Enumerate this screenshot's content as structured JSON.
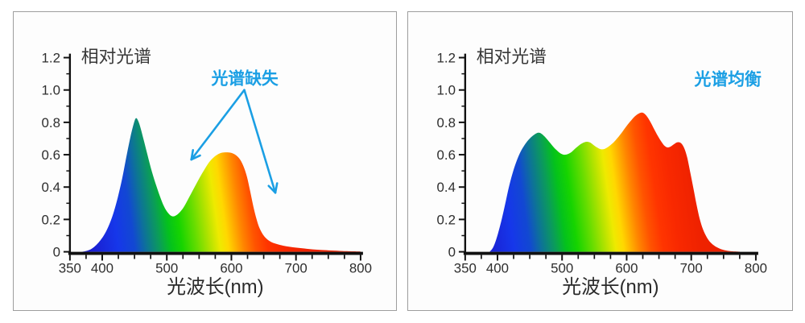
{
  "page": {
    "background": "#ffffff",
    "panel_border": "#9e9e9e",
    "panel_background": "#fdfdfd"
  },
  "text_colors": {
    "title": "#383838",
    "tick": "#2e2e2e",
    "axis": "#111111",
    "annotation_blue": "#1b9fe4"
  },
  "spectrum_gradient": {
    "tilt": 0.14,
    "range_nm": [
      380,
      760
    ],
    "stops": [
      [
        380,
        "#1b1bcd"
      ],
      [
        425,
        "#1637ea"
      ],
      [
        450,
        "#1248d2"
      ],
      [
        468,
        "#0d7397"
      ],
      [
        488,
        "#0b9c5a"
      ],
      [
        505,
        "#04c21c"
      ],
      [
        522,
        "#16d400"
      ],
      [
        545,
        "#66dd00"
      ],
      [
        565,
        "#b5e300"
      ],
      [
        580,
        "#eeea00"
      ],
      [
        592,
        "#ffd800"
      ],
      [
        604,
        "#ffae00"
      ],
      [
        616,
        "#ff8400"
      ],
      [
        633,
        "#ff5400"
      ],
      [
        652,
        "#ff3500"
      ],
      [
        675,
        "#f92900"
      ],
      [
        710,
        "#ef2200"
      ],
      [
        760,
        "#e91f00"
      ]
    ]
  },
  "chart_data": [
    {
      "type": "area",
      "title": "相对光谱",
      "xlabel": "光波长(nm)",
      "ylabel": "",
      "xlim": [
        350,
        800
      ],
      "ylim": [
        0,
        1.2
      ],
      "x_tick_labels": [
        "350",
        "400",
        "500",
        "600",
        "700",
        "800"
      ],
      "x_minor_tick_step": 25,
      "y_tick_labels": [
        "0",
        "0.2",
        "0.4",
        "0.6",
        "0.8",
        "1.0",
        "1.2"
      ],
      "y_minor_tick_step": 0.1,
      "grid": false,
      "legend": "none",
      "annotation": {
        "text": "光谱缺失",
        "color": "#1b9fe4",
        "arrows": [
          {
            "from": [
              620,
              1.0
            ],
            "to": [
              538,
              0.57
            ]
          },
          {
            "from": [
              620,
              1.0
            ],
            "to": [
              668,
              0.365
            ]
          }
        ]
      },
      "series": [
        {
          "points": [
            [
              368,
              0
            ],
            [
              375,
              0.005
            ],
            [
              382,
              0.015
            ],
            [
              389,
              0.035
            ],
            [
              396,
              0.065
            ],
            [
              403,
              0.105
            ],
            [
              410,
              0.16
            ],
            [
              417,
              0.235
            ],
            [
              424,
              0.335
            ],
            [
              431,
              0.455
            ],
            [
              438,
              0.6
            ],
            [
              444,
              0.715
            ],
            [
              449,
              0.795
            ],
            [
              452,
              0.825
            ],
            [
              455,
              0.815
            ],
            [
              459,
              0.77
            ],
            [
              464,
              0.695
            ],
            [
              470,
              0.6
            ],
            [
              477,
              0.495
            ],
            [
              484,
              0.405
            ],
            [
              491,
              0.325
            ],
            [
              497,
              0.27
            ],
            [
              503,
              0.235
            ],
            [
              508,
              0.22
            ],
            [
              513,
              0.222
            ],
            [
              519,
              0.24
            ],
            [
              526,
              0.275
            ],
            [
              533,
              0.325
            ],
            [
              541,
              0.385
            ],
            [
              549,
              0.445
            ],
            [
              557,
              0.5
            ],
            [
              564,
              0.545
            ],
            [
              571,
              0.578
            ],
            [
              578,
              0.6
            ],
            [
              585,
              0.612
            ],
            [
              592,
              0.615
            ],
            [
              599,
              0.612
            ],
            [
              606,
              0.6
            ],
            [
              612,
              0.578
            ],
            [
              618,
              0.535
            ],
            [
              624,
              0.465
            ],
            [
              629,
              0.375
            ],
            [
              634,
              0.28
            ],
            [
              639,
              0.2
            ],
            [
              644,
              0.142
            ],
            [
              650,
              0.1
            ],
            [
              656,
              0.075
            ],
            [
              663,
              0.058
            ],
            [
              671,
              0.047
            ],
            [
              680,
              0.038
            ],
            [
              690,
              0.031
            ],
            [
              701,
              0.025
            ],
            [
              713,
              0.02
            ],
            [
              726,
              0.015
            ],
            [
              740,
              0.011
            ],
            [
              755,
              0.008
            ],
            [
              772,
              0.005
            ],
            [
              790,
              0.003
            ],
            [
              800,
              0.002
            ]
          ]
        }
      ]
    },
    {
      "type": "area",
      "title": "相对光谱",
      "xlabel": "光波长(nm)",
      "ylabel": "",
      "xlim": [
        350,
        800
      ],
      "ylim": [
        0,
        1.2
      ],
      "x_tick_labels": [
        "350",
        "400",
        "500",
        "600",
        "700",
        "800"
      ],
      "x_minor_tick_step": 25,
      "y_tick_labels": [
        "0",
        "0.2",
        "0.4",
        "0.6",
        "0.8",
        "1.0",
        "1.2"
      ],
      "y_minor_tick_step": 0.1,
      "grid": false,
      "legend": "none",
      "annotation": {
        "text": "光谱均衡",
        "color": "#1b9fe4",
        "arrows": []
      },
      "series": [
        {
          "points": [
            [
              388,
              0
            ],
            [
              393,
              0.025
            ],
            [
              398,
              0.075
            ],
            [
              403,
              0.145
            ],
            [
              408,
              0.225
            ],
            [
              413,
              0.315
            ],
            [
              418,
              0.405
            ],
            [
              424,
              0.495
            ],
            [
              430,
              0.565
            ],
            [
              436,
              0.62
            ],
            [
              442,
              0.66
            ],
            [
              448,
              0.692
            ],
            [
              454,
              0.715
            ],
            [
              460,
              0.732
            ],
            [
              464,
              0.736
            ],
            [
              468,
              0.73
            ],
            [
              473,
              0.712
            ],
            [
              479,
              0.685
            ],
            [
              485,
              0.656
            ],
            [
              491,
              0.63
            ],
            [
              497,
              0.61
            ],
            [
              503,
              0.6
            ],
            [
              509,
              0.604
            ],
            [
              515,
              0.618
            ],
            [
              521,
              0.64
            ],
            [
              527,
              0.66
            ],
            [
              533,
              0.674
            ],
            [
              538,
              0.68
            ],
            [
              543,
              0.676
            ],
            [
              548,
              0.662
            ],
            [
              554,
              0.645
            ],
            [
              560,
              0.634
            ],
            [
              566,
              0.636
            ],
            [
              572,
              0.65
            ],
            [
              579,
              0.673
            ],
            [
              586,
              0.704
            ],
            [
              593,
              0.74
            ],
            [
              600,
              0.778
            ],
            [
              607,
              0.812
            ],
            [
              613,
              0.838
            ],
            [
              619,
              0.855
            ],
            [
              624,
              0.86
            ],
            [
              629,
              0.848
            ],
            [
              635,
              0.815
            ],
            [
              641,
              0.77
            ],
            [
              647,
              0.725
            ],
            [
              653,
              0.685
            ],
            [
              658,
              0.658
            ],
            [
              663,
              0.645
            ],
            [
              668,
              0.65
            ],
            [
              673,
              0.664
            ],
            [
              678,
              0.676
            ],
            [
              682,
              0.676
            ],
            [
              686,
              0.663
            ],
            [
              690,
              0.632
            ],
            [
              694,
              0.578
            ],
            [
              698,
              0.5
            ],
            [
              703,
              0.4
            ],
            [
              708,
              0.295
            ],
            [
              713,
              0.205
            ],
            [
              718,
              0.14
            ],
            [
              724,
              0.09
            ],
            [
              730,
              0.057
            ],
            [
              737,
              0.034
            ],
            [
              745,
              0.018
            ],
            [
              754,
              0.008
            ],
            [
              764,
              0.003
            ],
            [
              775,
              0.001
            ]
          ]
        }
      ]
    }
  ]
}
